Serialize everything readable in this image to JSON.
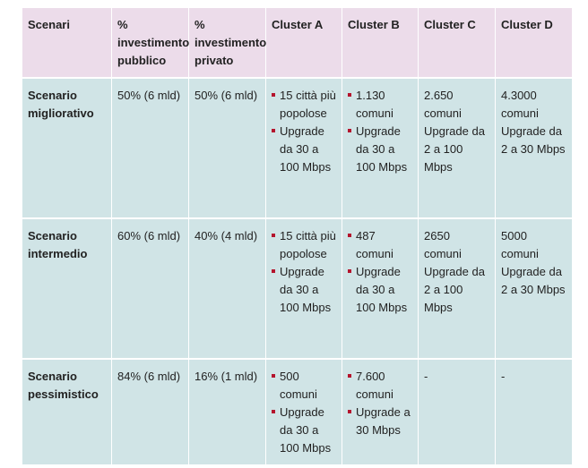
{
  "colors": {
    "header_bg": "#ecdcea",
    "body_bg": "#d0e4e6",
    "bullet": "#b4142d",
    "text": "#222222"
  },
  "table": {
    "headers": [
      "Scenari",
      "% investimento pubblico",
      "% investimento privato",
      "Cluster A",
      "Cluster B",
      "Cluster C",
      "Cluster D"
    ],
    "rows": [
      {
        "scenario": "Scenario migliorativo",
        "pubblico": "50% (6 mld)",
        "privato": "50% (6 mld)",
        "cluster_a": [
          "15 città più popolose",
          "Upgrade da 30 a 100 Mbps"
        ],
        "cluster_b": [
          "1.130 comuni",
          "Upgrade da 30 a 100 Mbps"
        ],
        "cluster_c": "2.650 comuni Upgrade da 2 a 100 Mbps",
        "cluster_d": "4.3000 comuni Upgrade da 2 a 30 Mbps"
      },
      {
        "scenario": "Scenario intermedio",
        "pubblico": "60% (6 mld)",
        "privato": "40% (4 mld)",
        "cluster_a": [
          "15 città più popolose",
          "Upgrade da 30 a 100 Mbps"
        ],
        "cluster_b": [
          "487 comuni",
          "Upgrade da 30 a 100 Mbps"
        ],
        "cluster_c": "2650 comuni Upgrade da 2 a 100 Mbps",
        "cluster_d": "5000 comuni Upgrade da 2 a 30 Mbps"
      },
      {
        "scenario": "Scenario pessimistico",
        "pubblico": "84% (6 mld)",
        "privato": "16% (1 mld)",
        "cluster_a": [
          "500 comuni",
          "Upgrade da 30 a 100 Mbps"
        ],
        "cluster_b": [
          "7.600 comuni",
          "Upgrade a 30 Mbps"
        ],
        "cluster_c": "-",
        "cluster_d": "-"
      }
    ]
  }
}
